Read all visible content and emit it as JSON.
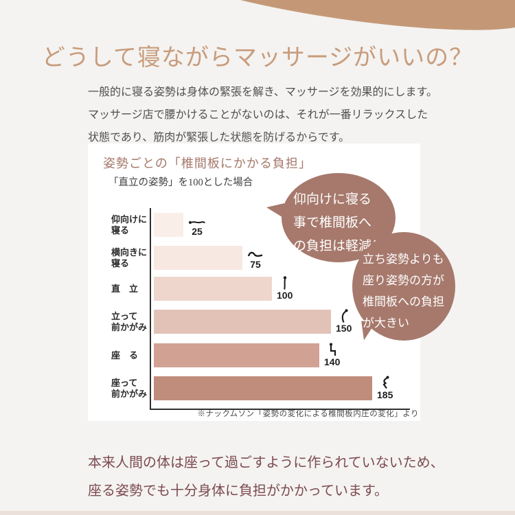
{
  "page": {
    "title": "どうして寝ながらマッサージがいいの？",
    "intro_lines": [
      "一般的に寝る姿勢は身体の緊張を解き、マッサージを効果的にします。",
      "マッサージ店で腰かけることがないのは、それが一番リラックスした",
      "状態であり、筋肉が緊張した状態を防げるからです。"
    ],
    "outro_lines": [
      "本来人間の体は座って過ごすように作られていないため、",
      "座る姿勢でも十分身体に負担がかかっています。"
    ]
  },
  "chart_card": {
    "title": "姿勢ごとの「椎間板にかかる負担」",
    "subtitle": "「直立の姿勢」を100とした場合",
    "footnote": "※ナックムソン「姿勢の変化による椎間板内圧の変化」より"
  },
  "bubbles": [
    {
      "lines": [
        "仰向けに寝る",
        "事で椎間板へ",
        "の負担は軽減！"
      ]
    },
    {
      "lines": [
        "立ち姿勢よりも",
        "座り姿勢の方が",
        "椎間板への負担",
        "が大きい"
      ]
    }
  ],
  "chart_data": {
    "type": "bar",
    "orientation": "horizontal",
    "title": "姿勢ごとの「椎間板にかかる負担」",
    "subtitle": "「直立の姿勢」を100とした場合",
    "baseline": "直立の姿勢 = 100",
    "xlim": [
      0,
      200
    ],
    "grid": false,
    "categories": [
      "仰向けに寝る",
      "横向きに寝る",
      "直立",
      "立って前かがみ",
      "座る",
      "座って前かがみ"
    ],
    "values": [
      25,
      75,
      100,
      150,
      140,
      185
    ],
    "rows": [
      {
        "label_lines": [
          "仰向けに",
          "寝る"
        ],
        "value": 25,
        "color": "#faeee9",
        "icon": "person-lying-supine-icon"
      },
      {
        "label_lines": [
          "横向きに",
          "寝る"
        ],
        "value": 75,
        "color": "#f8e8e2",
        "icon": "person-lying-side-icon"
      },
      {
        "label_lines": [
          "直　立"
        ],
        "value": 100,
        "color": "#eed6cd",
        "icon": "person-standing-icon"
      },
      {
        "label_lines": [
          "立って",
          "前かがみ"
        ],
        "value": 150,
        "color": "#e2c2b7",
        "icon": "person-standing-bent-icon"
      },
      {
        "label_lines": [
          "座　る"
        ],
        "value": 140,
        "color": "#d1a294",
        "icon": "person-sitting-icon"
      },
      {
        "label_lines": [
          "座って",
          "前かがみ"
        ],
        "value": 185,
        "color": "#c08d7c",
        "icon": "person-sitting-bent-icon"
      }
    ]
  },
  "colors": {
    "page_background": "#f4f3f1",
    "top_arc": "#c49877",
    "title": "#c89c7c",
    "intro_text": "#4f4f4f",
    "card_background": "#ffffff",
    "card_title": "#a5786a",
    "bubble": "#a6796c",
    "bubble_text": "#ffffff",
    "outro_text": "#7c4a50",
    "bottom_strip": "#ece0da"
  }
}
